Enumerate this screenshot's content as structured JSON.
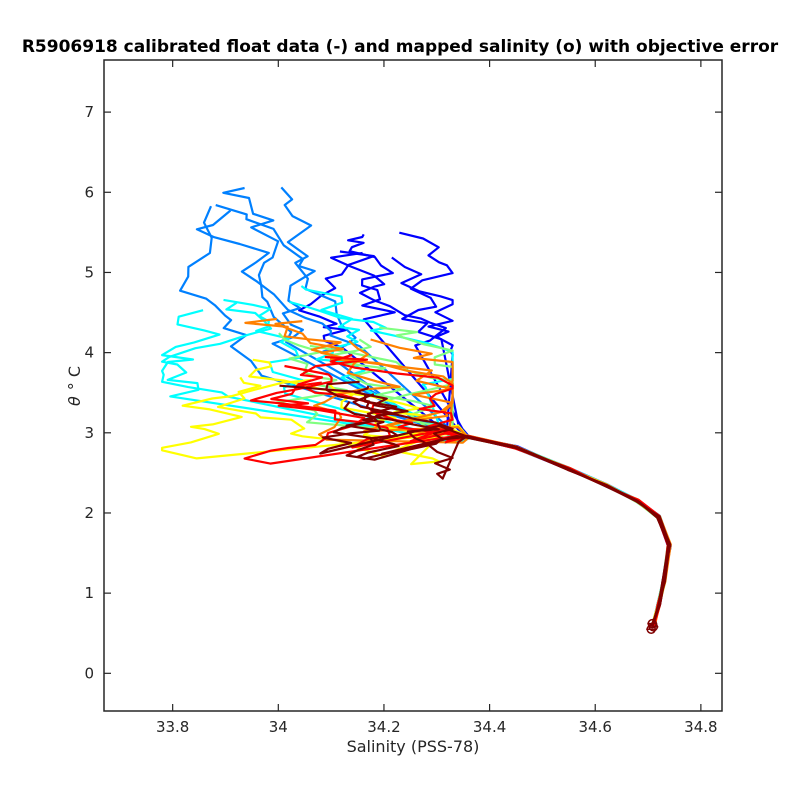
{
  "chart_data": {
    "type": "line",
    "title": "R5906918 calibrated float data (-) and mapped salinity (o) with objective error",
    "xlabel": "Salinity (PSS-78)",
    "ylabel_symbol": "θ",
    "ylabel_unit": "° C",
    "xlim": [
      33.67,
      34.84
    ],
    "ylim": [
      -0.47,
      7.65
    ],
    "xticks": [
      33.8,
      34.0,
      34.2,
      34.4,
      34.6,
      34.8
    ],
    "xtick_labels": [
      "33.8",
      "34",
      "34.2",
      "34.4",
      "34.6",
      "34.8"
    ],
    "yticks": [
      0,
      1,
      2,
      3,
      4,
      5,
      6,
      7
    ],
    "ytick_labels": [
      "0",
      "1",
      "2",
      "3",
      "4",
      "5",
      "6",
      "7"
    ],
    "grid": false,
    "colormap": "jet (profile order: first = blue, last = dark red)",
    "colors": [
      "#00008f",
      "#0000ff",
      "#0080ff",
      "#00ffff",
      "#80ff80",
      "#ffff00",
      "#ff8000",
      "#ff0000",
      "#800000"
    ],
    "deep_tail": [
      {
        "x": 34.36,
        "y": 2.95
      },
      {
        "x": 34.45,
        "y": 2.82
      },
      {
        "x": 34.55,
        "y": 2.55
      },
      {
        "x": 34.62,
        "y": 2.35
      },
      {
        "x": 34.68,
        "y": 2.15
      },
      {
        "x": 34.72,
        "y": 1.95
      },
      {
        "x": 34.74,
        "y": 1.6
      },
      {
        "x": 34.73,
        "y": 1.15
      },
      {
        "x": 34.72,
        "y": 0.85
      },
      {
        "x": 34.71,
        "y": 0.6
      }
    ],
    "mapped_points": [
      {
        "x": 34.708,
        "y": 0.62
      },
      {
        "x": 34.71,
        "y": 0.58
      },
      {
        "x": 34.706,
        "y": 0.55
      }
    ],
    "profile_clusters": [
      {
        "color_index": 1,
        "center": [
          34.18,
          4.75
        ],
        "spread": [
          0.15,
          0.75
        ],
        "count": 5
      },
      {
        "color_index": 2,
        "center": [
          33.95,
          5.2
        ],
        "spread": [
          0.12,
          1.3
        ],
        "count": 5
      },
      {
        "color_index": 3,
        "center": [
          33.96,
          4.2
        ],
        "spread": [
          0.14,
          0.75
        ],
        "count": 5
      },
      {
        "color_index": 4,
        "center": [
          34.08,
          3.7
        ],
        "spread": [
          0.17,
          0.7
        ],
        "count": 4
      },
      {
        "color_index": 5,
        "center": [
          34.0,
          3.3
        ],
        "spread": [
          0.15,
          0.7
        ],
        "count": 4
      },
      {
        "color_index": 6,
        "center": [
          34.1,
          3.7
        ],
        "spread": [
          0.18,
          0.8
        ],
        "count": 4
      },
      {
        "color_index": 7,
        "center": [
          34.1,
          3.3
        ],
        "spread": [
          0.18,
          0.7
        ],
        "count": 4
      },
      {
        "color_index": 8,
        "center": [
          34.08,
          3.1
        ],
        "spread": [
          0.15,
          0.55
        ],
        "count": 5
      }
    ]
  }
}
